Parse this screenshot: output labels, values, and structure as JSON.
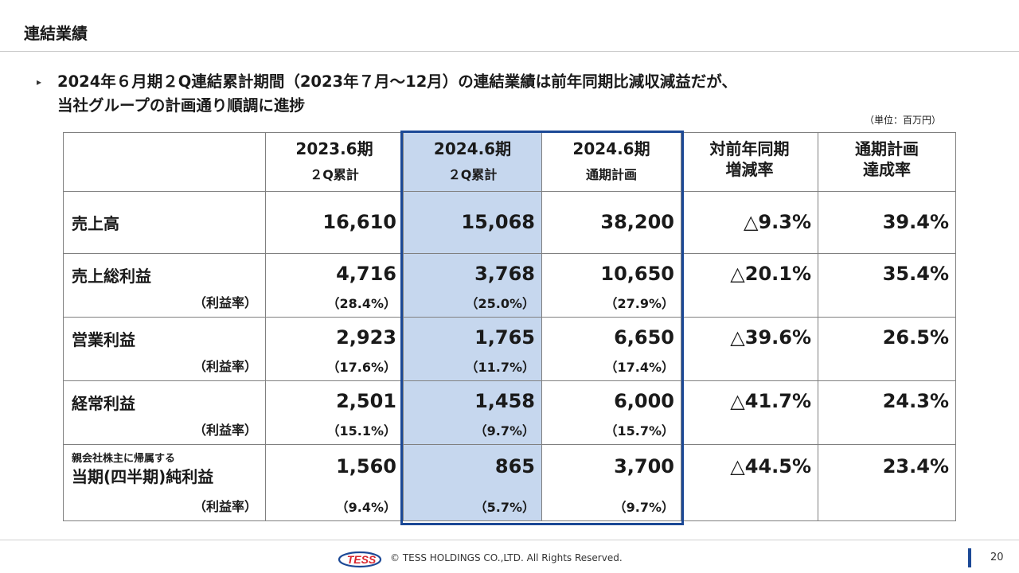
{
  "header": {
    "title": "連結業績"
  },
  "lead": {
    "bullet": "▸",
    "line1": "2024年６月期２Q連結累計期間（2023年７月～12月）の連結業績は前年同期比減収減益だが、",
    "line2": "当社グループの計画通り順調に進捗"
  },
  "unit_note": "（単位：百万円）",
  "table": {
    "columns": [
      {
        "line1": "2023.6期",
        "line2": "２Q累計"
      },
      {
        "line1": "2024.6期",
        "line2": "２Q累計"
      },
      {
        "line1": "2024.6期",
        "line2": "通期計画"
      },
      {
        "line1": "対前年同期",
        "line2": "増減率"
      },
      {
        "line1": "通期計画",
        "line2": "達成率"
      }
    ],
    "rate_label": "（利益率）",
    "rows": [
      {
        "label": "売上高",
        "values": [
          "16,610",
          "15,068",
          "38,200",
          "△9.3%",
          "39.4%"
        ]
      },
      {
        "label": "売上総利益",
        "values": [
          "4,716",
          "3,768",
          "10,650",
          "△20.1%",
          "35.4%"
        ],
        "rates": [
          "（28.4%）",
          "（25.0%）",
          "（27.9%）"
        ]
      },
      {
        "label": "営業利益",
        "values": [
          "2,923",
          "1,765",
          "6,650",
          "△39.6%",
          "26.5%"
        ],
        "rates": [
          "（17.6%）",
          "（11.7%）",
          "（17.4%）"
        ]
      },
      {
        "label": "経常利益",
        "values": [
          "2,501",
          "1,458",
          "6,000",
          "△41.7%",
          "24.3%"
        ],
        "rates": [
          "（15.1%）",
          "（9.7%）",
          "（15.7%）"
        ]
      },
      {
        "label_small": "親会社株主に帰属する",
        "label": "当期(四半期)純利益",
        "values": [
          "1,560",
          "865",
          "3,700",
          "△44.5%",
          "23.4%"
        ],
        "rates": [
          "（9.4%）",
          "（5.7%）",
          "（9.7%）"
        ]
      }
    ]
  },
  "footer": {
    "logo_text": "TESS",
    "copyright": "© TESS HOLDINGS CO.,LTD. All Rights Reserved.",
    "page_number": "20"
  },
  "colors": {
    "accent": "#1c4996",
    "highlight": "#c6d7ee",
    "grid": "#808080"
  }
}
